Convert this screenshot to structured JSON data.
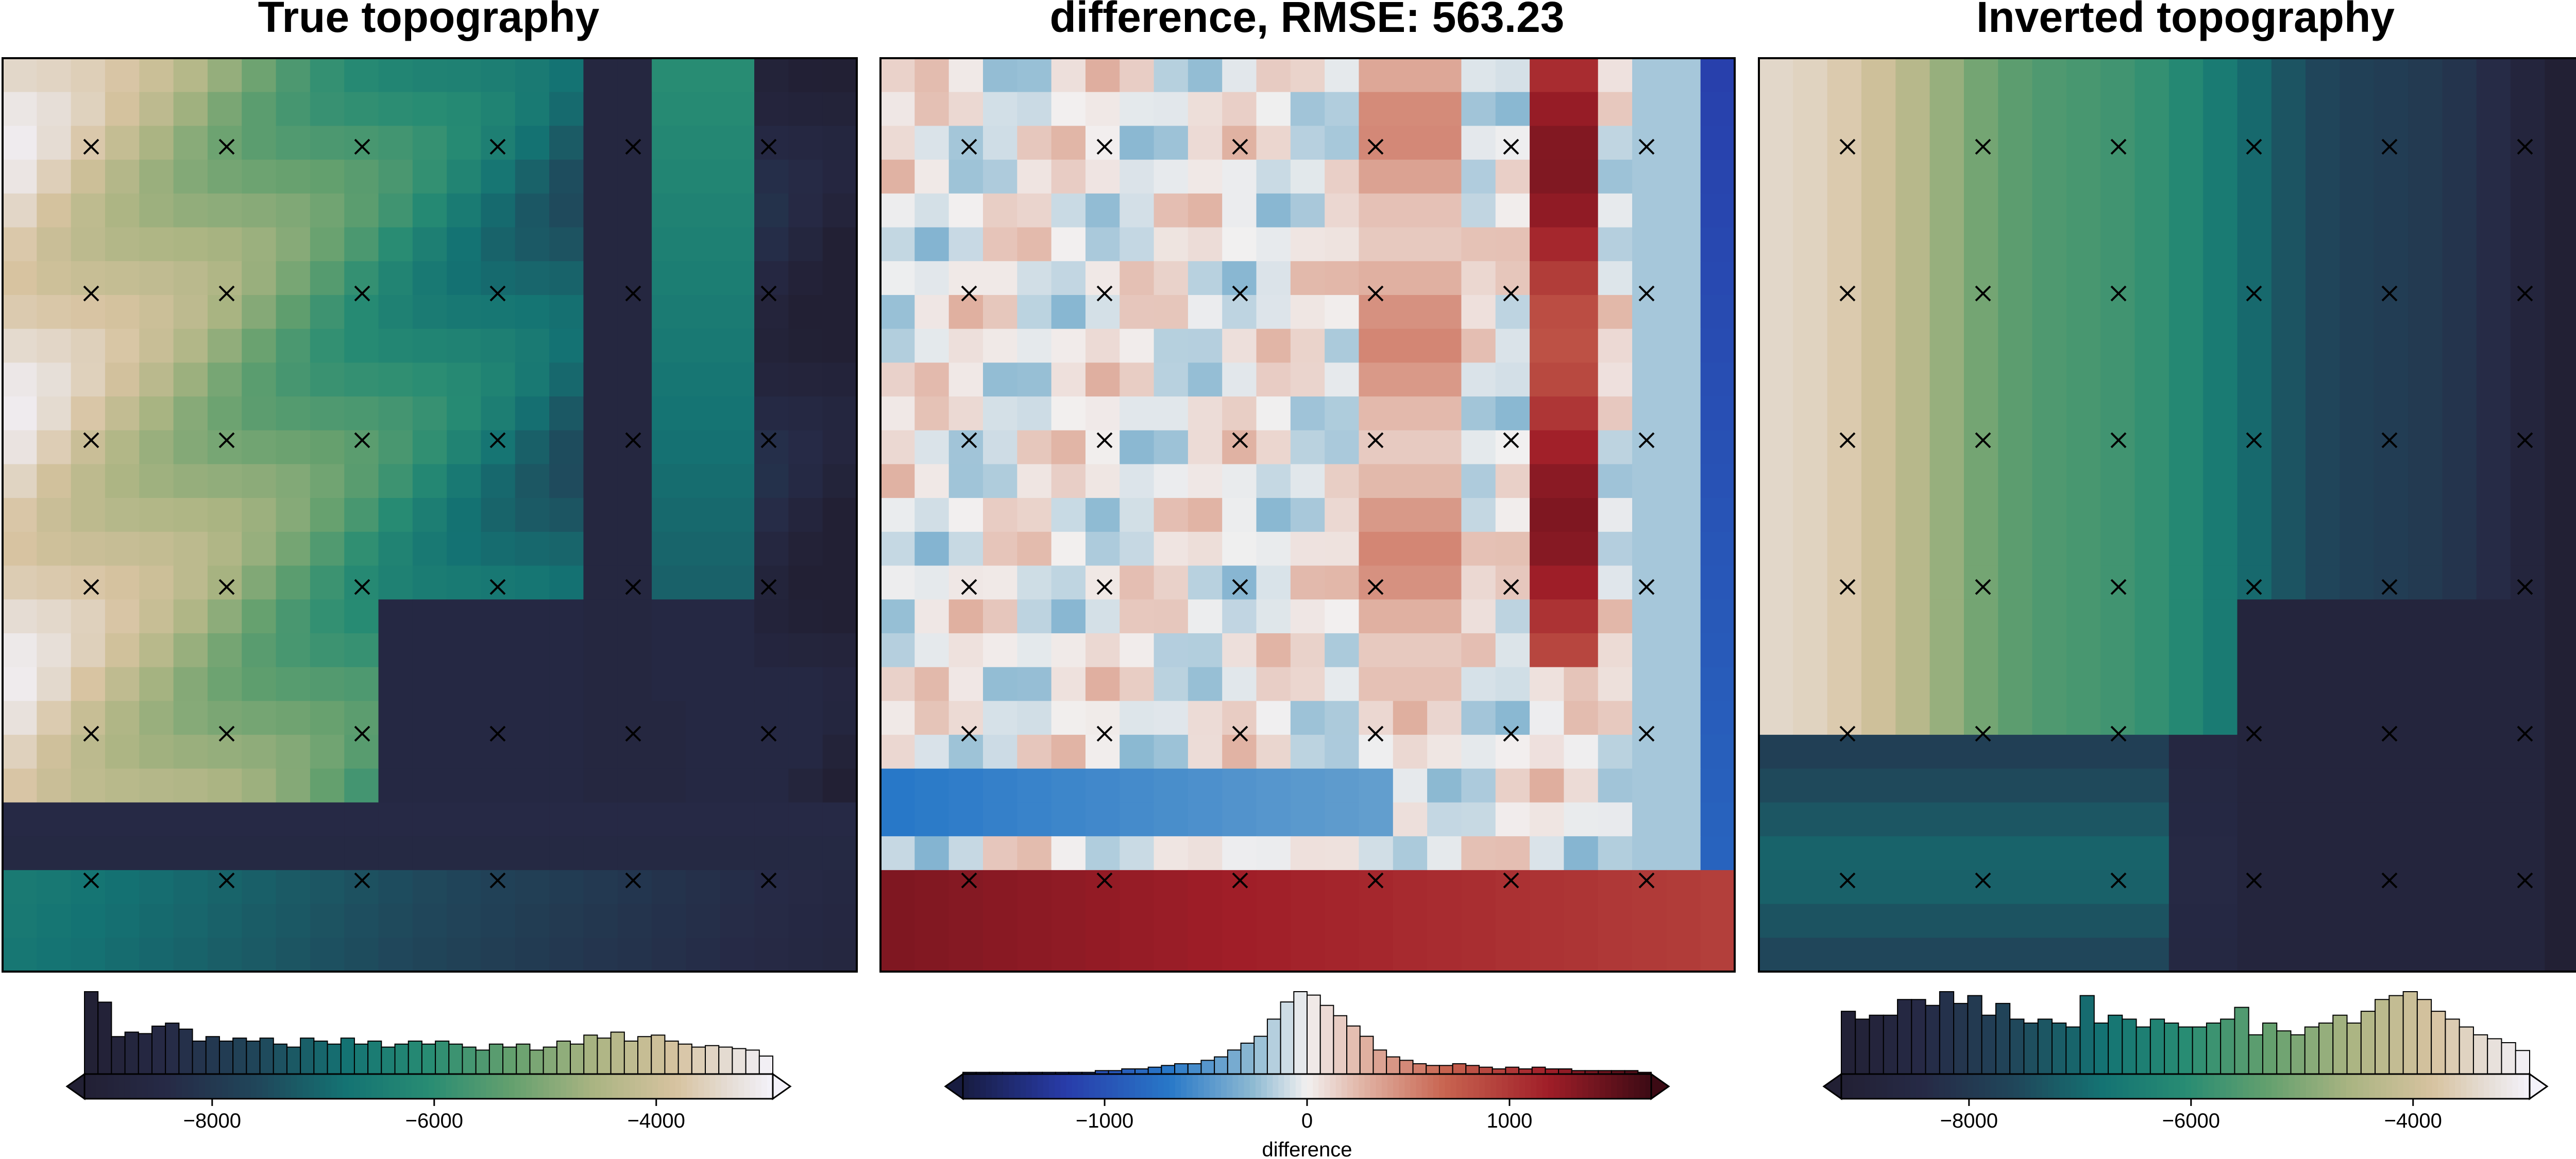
{
  "chart_data": [
    {
      "type": "heatmap",
      "title": "True topography",
      "colormap": "topography-rain-reversed",
      "colorbar": {
        "ticks": [
          -8000,
          -6000,
          -4000
        ],
        "tick_labels": [
          "−8000",
          "−6000",
          "−4000"
        ],
        "range": [
          -9150,
          -2950
        ],
        "label": "",
        "histogram": [
          55,
          48,
          25,
          28,
          27,
          32,
          34,
          30,
          22,
          25,
          22,
          24,
          22,
          24,
          20,
          18,
          24,
          22,
          20,
          24,
          20,
          22,
          18,
          20,
          22,
          20,
          22,
          20,
          18,
          16,
          20,
          18,
          20,
          16,
          18,
          22,
          20,
          26,
          24,
          28,
          22,
          25,
          26,
          22,
          20,
          18,
          19,
          18,
          17,
          16,
          12
        ]
      },
      "markers": {
        "symbol": "x",
        "count_x": 6,
        "count_y": 6
      }
    },
    {
      "type": "heatmap",
      "title": "difference, RMSE: 563.23",
      "colormap": "balance",
      "colorbar": {
        "ticks": [
          -1000,
          0,
          1000
        ],
        "tick_labels": [
          "−1000",
          "0",
          "1000"
        ],
        "range": [
          -1700,
          1700
        ],
        "label": "difference",
        "histogram": [
          1,
          1,
          1,
          1,
          1,
          1,
          1,
          1,
          1,
          1,
          2,
          2,
          3,
          3,
          4,
          5,
          6,
          6,
          8,
          10,
          14,
          18,
          22,
          32,
          42,
          48,
          46,
          40,
          34,
          28,
          22,
          14,
          10,
          8,
          6,
          5,
          5,
          6,
          5,
          4,
          3,
          4,
          3,
          4,
          3,
          3,
          2,
          2,
          2,
          2,
          2,
          1
        ]
      },
      "markers": {
        "symbol": "x",
        "count_x": 6,
        "count_y": 6
      }
    },
    {
      "type": "heatmap",
      "title": "Inverted topography",
      "colormap": "topography-rain-reversed",
      "colorbar": {
        "ticks": [
          -8000,
          -6000,
          -4000
        ],
        "tick_labels": [
          "−8000",
          "−6000",
          "−4000"
        ],
        "range": [
          -9150,
          -2950
        ],
        "label": "",
        "histogram": [
          32,
          28,
          30,
          30,
          38,
          38,
          35,
          42,
          36,
          40,
          30,
          36,
          28,
          26,
          28,
          26,
          24,
          40,
          26,
          30,
          28,
          24,
          28,
          26,
          24,
          24,
          26,
          28,
          34,
          20,
          26,
          22,
          20,
          24,
          26,
          30,
          26,
          32,
          38,
          40,
          42,
          38,
          32,
          28,
          24,
          20,
          18,
          16,
          12
        ]
      },
      "markers": {
        "symbol": "x",
        "count_x": 6,
        "count_y": 6
      }
    }
  ]
}
